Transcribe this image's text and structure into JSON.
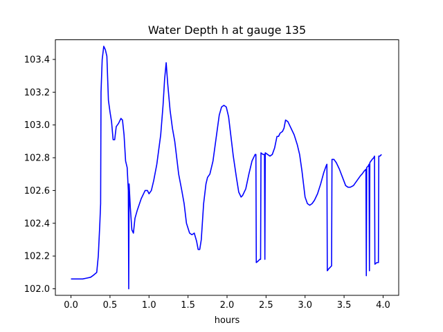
{
  "chart_data": {
    "type": "line",
    "title": "Water Depth h at gauge 135",
    "xlabel": "hours",
    "ylabel": "",
    "xlim": [
      -0.2,
      4.2
    ],
    "ylim": [
      101.96,
      103.52
    ],
    "xticks": [
      "0.0",
      "0.5",
      "1.0",
      "1.5",
      "2.0",
      "2.5",
      "3.0",
      "3.5",
      "4.0"
    ],
    "yticks": [
      "102.0",
      "102.2",
      "102.4",
      "102.6",
      "102.8",
      "103.0",
      "103.2",
      "103.4"
    ],
    "grid": false,
    "legend": "none",
    "series": [
      {
        "color": "#0000ff",
        "points": [
          [
            0.0,
            102.06
          ],
          [
            0.1,
            102.06
          ],
          [
            0.15,
            102.06
          ],
          [
            0.2,
            102.065
          ],
          [
            0.25,
            102.07
          ],
          [
            0.28,
            102.08
          ],
          [
            0.33,
            102.1
          ],
          [
            0.35,
            102.2
          ],
          [
            0.37,
            102.4
          ],
          [
            0.38,
            102.52
          ],
          [
            0.385,
            103.2
          ],
          [
            0.4,
            103.4
          ],
          [
            0.42,
            103.48
          ],
          [
            0.44,
            103.46
          ],
          [
            0.46,
            103.42
          ],
          [
            0.48,
            103.15
          ],
          [
            0.5,
            103.08
          ],
          [
            0.52,
            103.02
          ],
          [
            0.54,
            102.91
          ],
          [
            0.56,
            102.91
          ],
          [
            0.58,
            102.99
          ],
          [
            0.61,
            103.01
          ],
          [
            0.64,
            103.04
          ],
          [
            0.66,
            103.03
          ],
          [
            0.68,
            102.94
          ],
          [
            0.7,
            102.78
          ],
          [
            0.72,
            102.74
          ],
          [
            0.735,
            102.6
          ],
          [
            0.74,
            102.0
          ],
          [
            0.745,
            102.64
          ],
          [
            0.76,
            102.5
          ],
          [
            0.78,
            102.36
          ],
          [
            0.8,
            102.34
          ],
          [
            0.82,
            102.43
          ],
          [
            0.85,
            102.48
          ],
          [
            0.9,
            102.55
          ],
          [
            0.95,
            102.6
          ],
          [
            0.98,
            102.6
          ],
          [
            1.0,
            102.58
          ],
          [
            1.03,
            102.6
          ],
          [
            1.06,
            102.66
          ],
          [
            1.1,
            102.76
          ],
          [
            1.15,
            102.94
          ],
          [
            1.18,
            103.12
          ],
          [
            1.2,
            103.28
          ],
          [
            1.22,
            103.38
          ],
          [
            1.24,
            103.25
          ],
          [
            1.27,
            103.09
          ],
          [
            1.3,
            102.98
          ],
          [
            1.33,
            102.9
          ],
          [
            1.35,
            102.82
          ],
          [
            1.38,
            102.7
          ],
          [
            1.42,
            102.6
          ],
          [
            1.45,
            102.52
          ],
          [
            1.48,
            102.4
          ],
          [
            1.52,
            102.34
          ],
          [
            1.55,
            102.33
          ],
          [
            1.58,
            102.34
          ],
          [
            1.61,
            102.29
          ],
          [
            1.63,
            102.24
          ],
          [
            1.65,
            102.24
          ],
          [
            1.67,
            102.3
          ],
          [
            1.7,
            102.52
          ],
          [
            1.73,
            102.64
          ],
          [
            1.75,
            102.68
          ],
          [
            1.78,
            102.7
          ],
          [
            1.82,
            102.78
          ],
          [
            1.86,
            102.92
          ],
          [
            1.9,
            103.06
          ],
          [
            1.93,
            103.11
          ],
          [
            1.96,
            103.12
          ],
          [
            1.99,
            103.11
          ],
          [
            2.02,
            103.05
          ],
          [
            2.05,
            102.93
          ],
          [
            2.08,
            102.81
          ],
          [
            2.12,
            102.68
          ],
          [
            2.15,
            102.59
          ],
          [
            2.18,
            102.56
          ],
          [
            2.2,
            102.57
          ],
          [
            2.24,
            102.61
          ],
          [
            2.28,
            102.7
          ],
          [
            2.32,
            102.78
          ],
          [
            2.36,
            102.82
          ],
          [
            2.37,
            102.82
          ],
          [
            2.375,
            102.16
          ],
          [
            2.4,
            102.17
          ],
          [
            2.42,
            102.18
          ],
          [
            2.43,
            102.18
          ],
          [
            2.435,
            102.83
          ],
          [
            2.46,
            102.82
          ],
          [
            2.48,
            102.82
          ],
          [
            2.485,
            102.18
          ],
          [
            2.49,
            102.83
          ],
          [
            2.55,
            102.81
          ],
          [
            2.58,
            102.82
          ],
          [
            2.61,
            102.86
          ],
          [
            2.64,
            102.93
          ],
          [
            2.66,
            102.93
          ],
          [
            2.68,
            102.95
          ],
          [
            2.71,
            102.96
          ],
          [
            2.73,
            102.98
          ],
          [
            2.75,
            103.03
          ],
          [
            2.78,
            103.02
          ],
          [
            2.82,
            102.98
          ],
          [
            2.86,
            102.94
          ],
          [
            2.9,
            102.88
          ],
          [
            2.93,
            102.82
          ],
          [
            2.96,
            102.72
          ],
          [
            2.98,
            102.64
          ],
          [
            3.0,
            102.56
          ],
          [
            3.03,
            102.52
          ],
          [
            3.06,
            102.51
          ],
          [
            3.09,
            102.52
          ],
          [
            3.12,
            102.54
          ],
          [
            3.16,
            102.58
          ],
          [
            3.2,
            102.64
          ],
          [
            3.24,
            102.71
          ],
          [
            3.27,
            102.75
          ],
          [
            3.28,
            102.76
          ],
          [
            3.285,
            102.11
          ],
          [
            3.3,
            102.12
          ],
          [
            3.32,
            102.13
          ],
          [
            3.34,
            102.14
          ],
          [
            3.345,
            102.79
          ],
          [
            3.37,
            102.79
          ],
          [
            3.4,
            102.77
          ],
          [
            3.44,
            102.73
          ],
          [
            3.48,
            102.68
          ],
          [
            3.52,
            102.63
          ],
          [
            3.55,
            102.62
          ],
          [
            3.58,
            102.62
          ],
          [
            3.62,
            102.63
          ],
          [
            3.65,
            102.65
          ],
          [
            3.68,
            102.67
          ],
          [
            3.71,
            102.69
          ],
          [
            3.73,
            102.7
          ],
          [
            3.76,
            102.72
          ],
          [
            3.78,
            102.73
          ],
          [
            3.785,
            102.08
          ],
          [
            3.79,
            102.74
          ],
          [
            3.81,
            102.75
          ],
          [
            3.82,
            102.76
          ],
          [
            3.825,
            102.11
          ],
          [
            3.83,
            102.77
          ],
          [
            3.86,
            102.79
          ],
          [
            3.88,
            102.8
          ],
          [
            3.89,
            102.81
          ],
          [
            3.895,
            102.15
          ],
          [
            3.92,
            102.16
          ],
          [
            3.94,
            102.16
          ],
          [
            3.945,
            102.81
          ],
          [
            3.96,
            102.81
          ],
          [
            3.98,
            102.82
          ]
        ]
      }
    ]
  }
}
